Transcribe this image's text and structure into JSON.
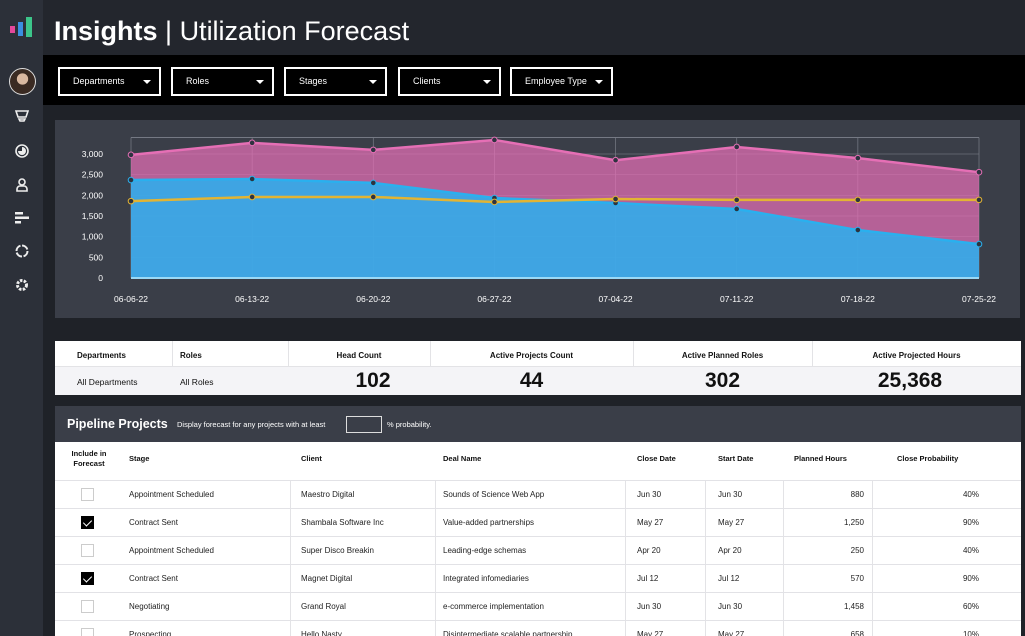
{
  "header": {
    "title_bold": "Insights",
    "title_sep": "|",
    "title_light": "Utilization Forecast"
  },
  "sidebar": {
    "icons": [
      "funnel-icon",
      "dashboard-icon",
      "user-icon",
      "bar-list-icon",
      "refresh-icon",
      "gear-icon"
    ]
  },
  "filters": [
    {
      "label": "Departments"
    },
    {
      "label": "Roles"
    },
    {
      "label": "Stages"
    },
    {
      "label": "Clients"
    },
    {
      "label": "Employee Type"
    }
  ],
  "colors": {
    "pink": "#e56fb5",
    "blue": "#2ab0ee",
    "yellow": "#e3b433",
    "panel": "#3a3e48"
  },
  "chart_data": {
    "type": "area",
    "x": [
      "06-06-22",
      "06-13-22",
      "06-20-22",
      "06-27-22",
      "07-04-22",
      "07-11-22",
      "07-18-22",
      "07-25-22"
    ],
    "yticks": [
      "0",
      "500",
      "1,000",
      "1,500",
      "2,000",
      "2,500",
      "3,000"
    ],
    "ylim": [
      0,
      3400
    ],
    "grid": true,
    "series": [
      {
        "color": "#e56fb5",
        "kind": "area",
        "values": [
          2980,
          3270,
          3100,
          3340,
          2850,
          3170,
          2900,
          2560
        ]
      },
      {
        "color": "#2ab0ee",
        "kind": "area",
        "values": [
          2370,
          2395,
          2300,
          1935,
          1815,
          1670,
          1160,
          820
        ]
      },
      {
        "color": "#e3b433",
        "kind": "line",
        "values": [
          1860,
          1960,
          1960,
          1840,
          1910,
          1890,
          1890,
          1890
        ]
      }
    ]
  },
  "stats": {
    "headers": [
      "Departments",
      "Roles",
      "Head Count",
      "Active Projects Count",
      "Active Planned Roles",
      "Active Projected Hours"
    ],
    "department": "All Departments",
    "role": "All Roles",
    "head_count": "102",
    "active_projects": "44",
    "planned_roles": "302",
    "projected_hours": "25,368"
  },
  "pipeline": {
    "title": "Pipeline Projects",
    "desc": "Display forecast for any projects with at least",
    "suffix": "% probability.",
    "probability_value": "",
    "headers": [
      "Include in Forecast",
      "Stage",
      "Client",
      "Deal Name",
      "Close Date",
      "Start Date",
      "Planned Hours",
      "Close Probability"
    ],
    "rows": [
      {
        "checked": false,
        "stage": "Appointment Scheduled",
        "client": "Maestro Digital",
        "deal": "Sounds of Science Web App",
        "close": "Jun 30",
        "start": "Jun 30",
        "hours": "880",
        "prob": "40%"
      },
      {
        "checked": true,
        "stage": "Contract Sent",
        "client": "Shambala Software Inc",
        "deal": "Value-added partnerships",
        "close": "May 27",
        "start": "May 27",
        "hours": "1,250",
        "prob": "90%"
      },
      {
        "checked": false,
        "stage": "Appointment Scheduled",
        "client": "Super Disco Breakin",
        "deal": "Leading-edge schemas",
        "close": "Apr 20",
        "start": "Apr 20",
        "hours": "250",
        "prob": "40%"
      },
      {
        "checked": true,
        "stage": "Contract Sent",
        "client": "Magnet Digital",
        "deal": "Integrated infomediaries",
        "close": "Jul 12",
        "start": "Jul 12",
        "hours": "570",
        "prob": "90%"
      },
      {
        "checked": false,
        "stage": "Negotiating",
        "client": "Grand Royal",
        "deal": "e-commerce implementation",
        "close": "Jun 30",
        "start": "Jun 30",
        "hours": "1,458",
        "prob": "60%"
      },
      {
        "checked": false,
        "stage": "Prospecting",
        "client": "Hello Nasty",
        "deal": "Disintermediate scalable partnership",
        "close": "May 27",
        "start": "May 27",
        "hours": "658",
        "prob": "10%"
      }
    ]
  }
}
